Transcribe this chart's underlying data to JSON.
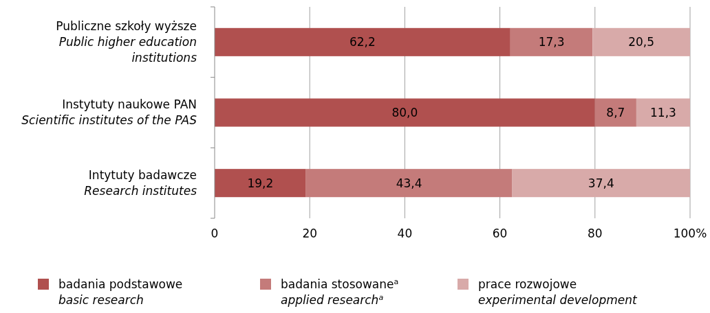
{
  "chart_data": {
    "type": "bar",
    "orientation": "horizontal",
    "stacked": true,
    "categories": [
      "Publiczne szkoły wyższe\nPublic higher education\ninstitutions",
      "Instytuty naukowe PAN\nScientific institutes of the PAS",
      "Intytuty badawcze\nResearch institutes"
    ],
    "series": [
      {
        "name": "badania podstawowe\nbasic research",
        "color": "#b0504f",
        "values": [
          62.2,
          80.0,
          19.2
        ],
        "value_labels": [
          "62,2",
          "80,0",
          "19,2"
        ]
      },
      {
        "name": "badania stosowane$^{a}$\napplied research$^{a}$",
        "color": "#c47b7a",
        "values": [
          17.3,
          8.7,
          43.4
        ],
        "value_labels": [
          "17,3",
          "8,7",
          "43,4"
        ]
      },
      {
        "name": "prace rozwojowe\nexperimental development",
        "color": "#d8aaa9",
        "values": [
          20.5,
          11.3,
          37.4
        ],
        "value_labels": [
          "20,5",
          "11,3",
          "37,4"
        ]
      }
    ],
    "xlim": [
      0,
      100
    ],
    "xticks": [
      0,
      20,
      40,
      60,
      80,
      {
        "value": 100,
        "label": "100%"
      }
    ],
    "grid": "x",
    "legend": "bottom"
  }
}
